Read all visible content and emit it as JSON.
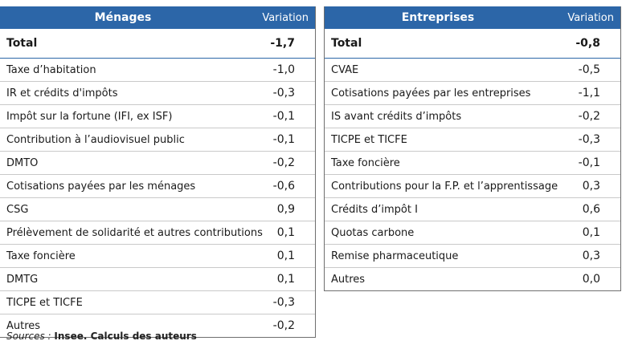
{
  "menages": {
    "title": "Ménages",
    "variation_header": "Variation",
    "total": {
      "label": "Total",
      "value": "-1,7"
    },
    "rows": [
      {
        "label": "Taxe d’habitation",
        "value": "-1,0"
      },
      {
        "label": "IR et crédits d'impôts",
        "value": "-0,3"
      },
      {
        "label": "Impôt sur la fortune (IFI, ex ISF)",
        "value": "-0,1"
      },
      {
        "label": "Contribution à l’audiovisuel public",
        "value": "-0,1"
      },
      {
        "label": "DMTO",
        "value": "-0,2"
      },
      {
        "label": "Cotisations payées par les ménages",
        "value": "-0,6"
      },
      {
        "label": "CSG",
        "value": "0,9"
      },
      {
        "label": "Prélèvement de solidarité et autres contributions",
        "value": "0,1"
      },
      {
        "label": "Taxe foncière",
        "value": "0,1"
      },
      {
        "label": "DMTG",
        "value": "0,1"
      },
      {
        "label": "TICPE et TICFE",
        "value": "-0,3"
      },
      {
        "label": "Autres",
        "value": "-0,2"
      }
    ]
  },
  "entreprises": {
    "title": "Entreprises",
    "variation_header": "Variation",
    "total": {
      "label": "Total",
      "value": "-0,8"
    },
    "rows": [
      {
        "label": "CVAE",
        "value": "-0,5"
      },
      {
        "label": "Cotisations payées par les entreprises",
        "value": "-1,1"
      },
      {
        "label": "IS avant crédits d’impôts",
        "value": "-0,2"
      },
      {
        "label": "TICPE et TICFE",
        "value": "-0,3"
      },
      {
        "label": "Taxe foncière",
        "value": "-0,1"
      },
      {
        "label": "Contributions pour la F.P. et l’apprentissage",
        "value": "0,3"
      },
      {
        "label": "Crédits d’impôt I",
        "value": "0,6"
      },
      {
        "label": "Quotas carbone",
        "value": "0,1"
      },
      {
        "label": "Remise pharmaceutique",
        "value": "0,3"
      },
      {
        "label": "Autres",
        "value": "0,0"
      }
    ]
  },
  "source": {
    "prefix": "Sources :",
    "text": "Insee. Calculs des auteurs"
  },
  "colors": {
    "header_bg": "#2c66a8",
    "header_text": "#ffffff"
  }
}
